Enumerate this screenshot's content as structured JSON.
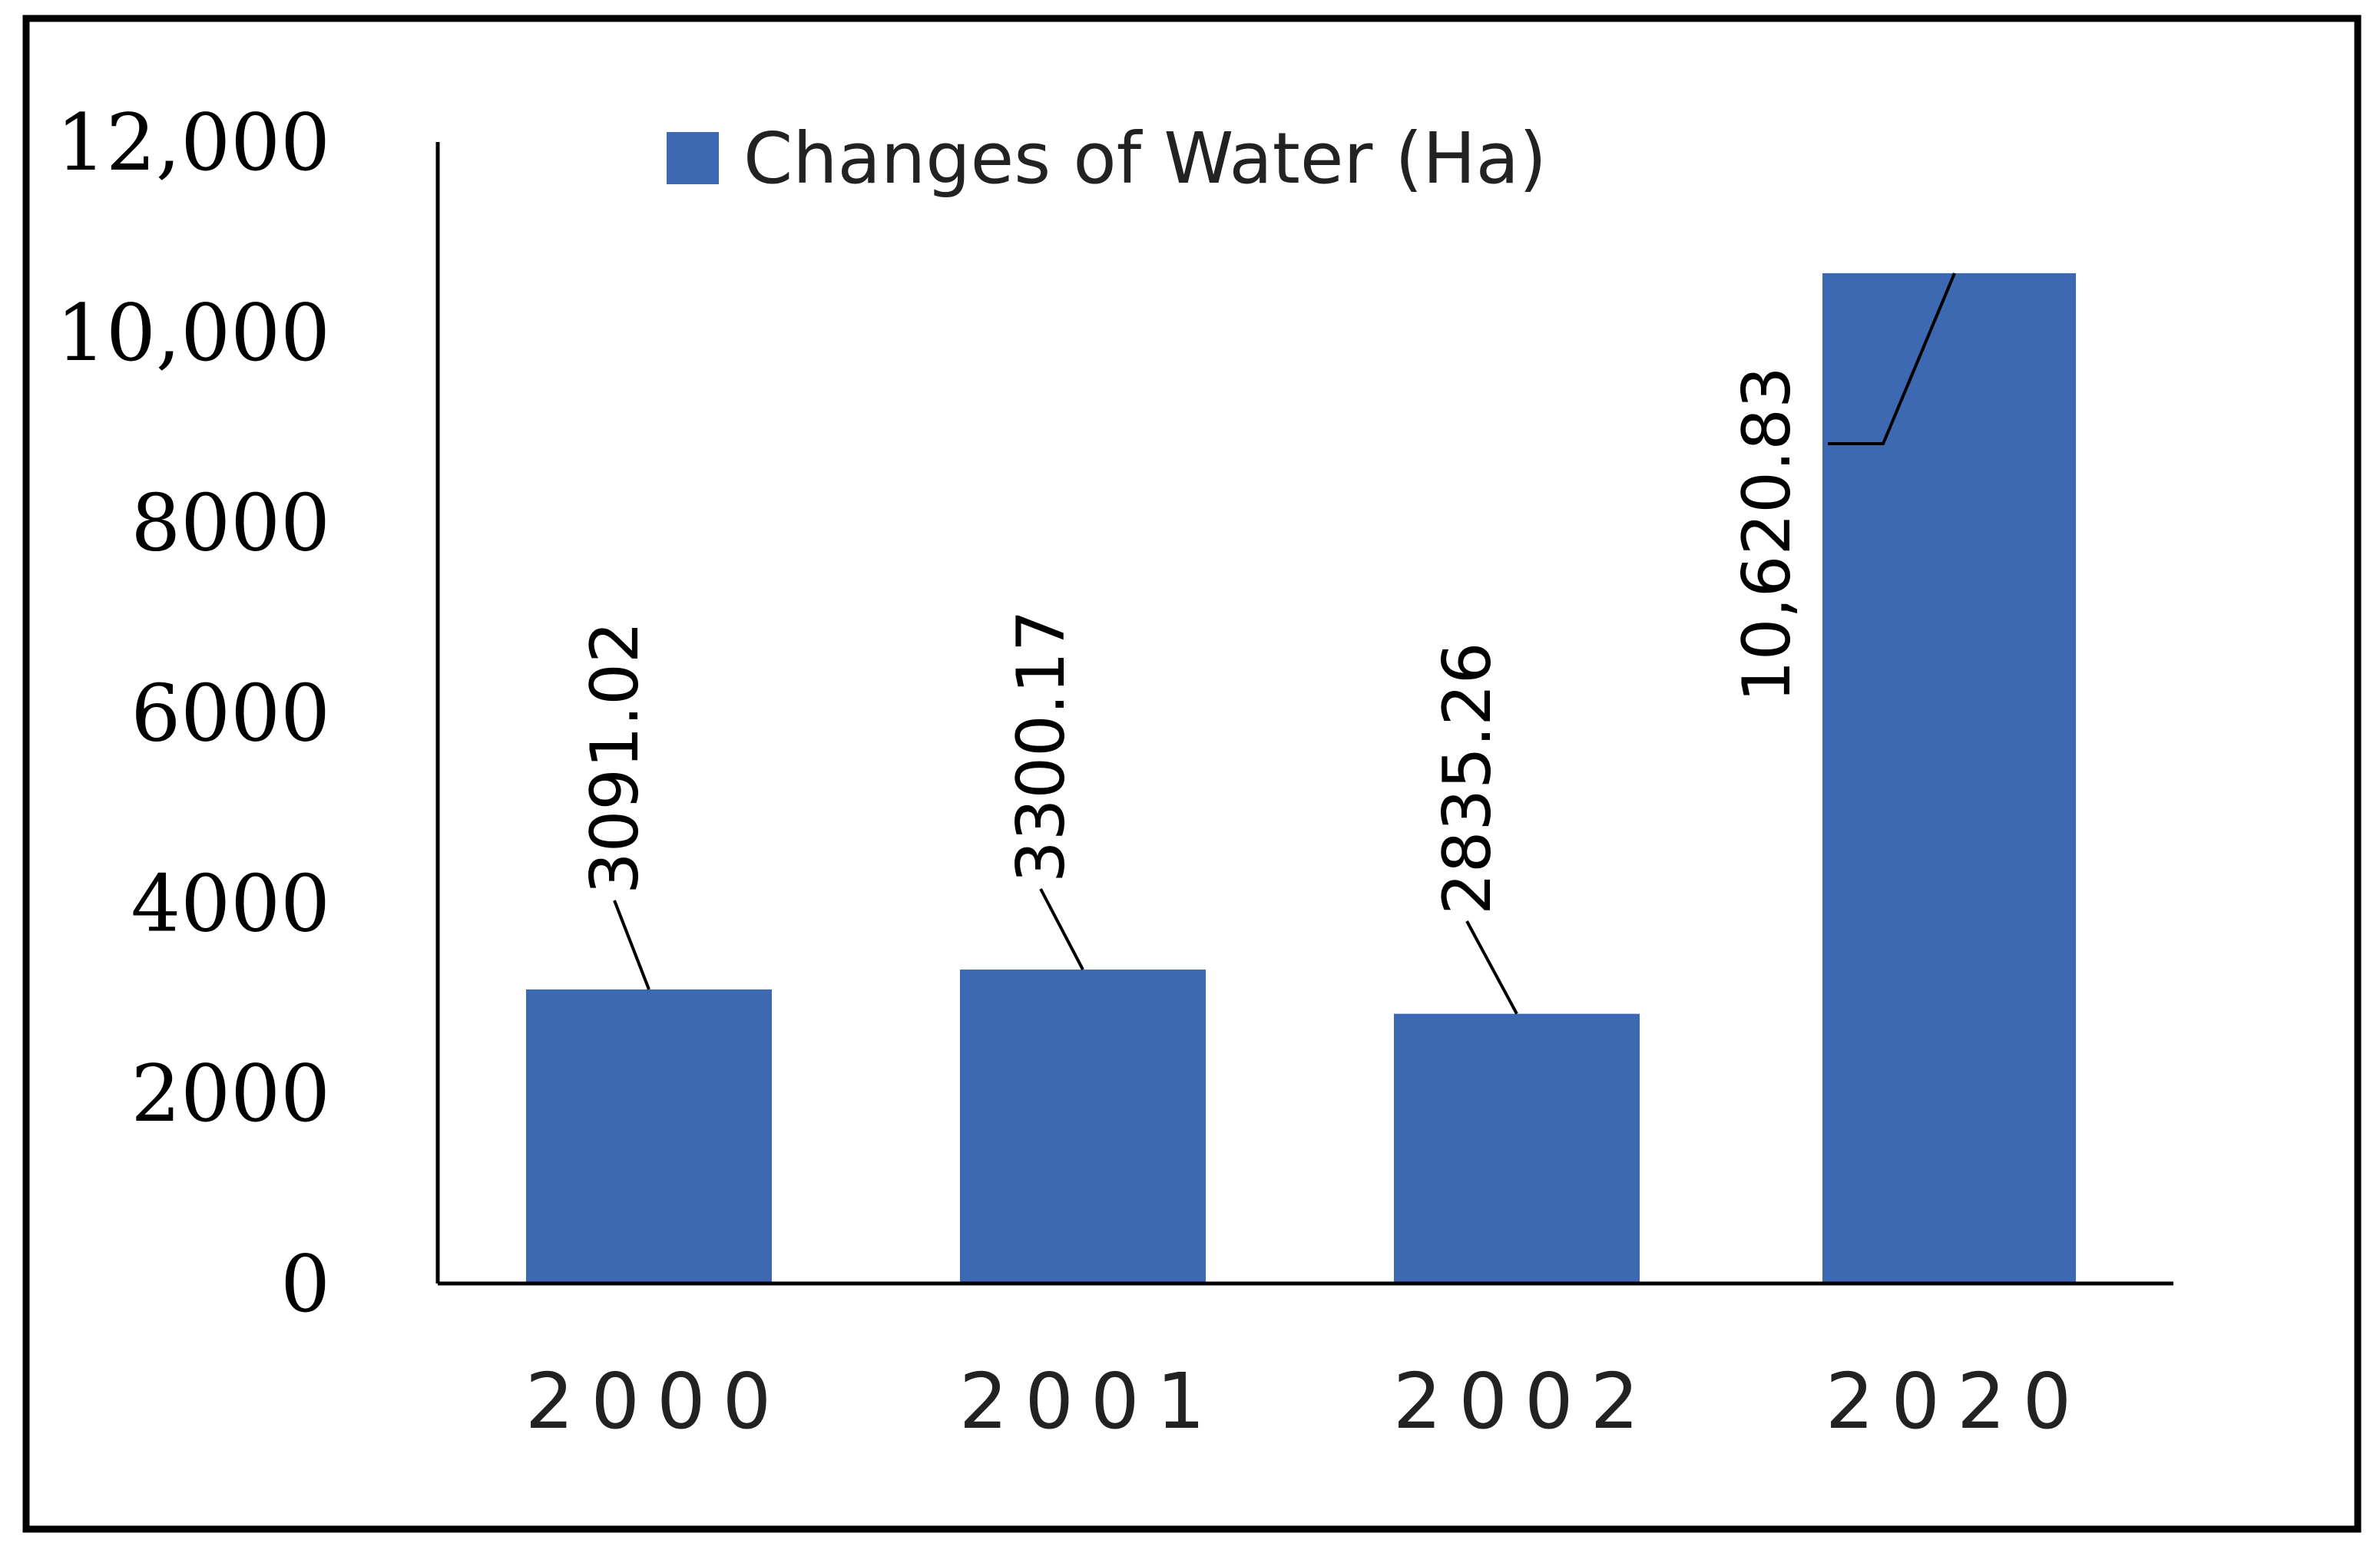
{
  "chart_data": {
    "type": "bar",
    "title": "",
    "xlabel": "",
    "ylabel": "",
    "categories": [
      "2000",
      "2001",
      "2002",
      "2020"
    ],
    "series": [
      {
        "name": "Changes of Water (Ha)",
        "values": [
          3091.02,
          3300.17,
          2835.26,
          10620.83
        ],
        "value_labels": [
          "3091.02",
          "3300.17",
          "2835.26",
          "10,620.83"
        ]
      }
    ],
    "ylim": [
      0,
      12000
    ],
    "yticks": [
      {
        "value": 0,
        "label": "0"
      },
      {
        "value": 2000,
        "label": "2000"
      },
      {
        "value": 4000,
        "label": "4000"
      },
      {
        "value": 6000,
        "label": "6000"
      },
      {
        "value": 8000,
        "label": "8000"
      },
      {
        "value": 10000,
        "label": "10,000"
      },
      {
        "value": 12000,
        "label": "12,000"
      }
    ],
    "grid": false,
    "legend_position": "top",
    "colors": {
      "bar": "#3d69b2",
      "frame": "#000000"
    }
  }
}
